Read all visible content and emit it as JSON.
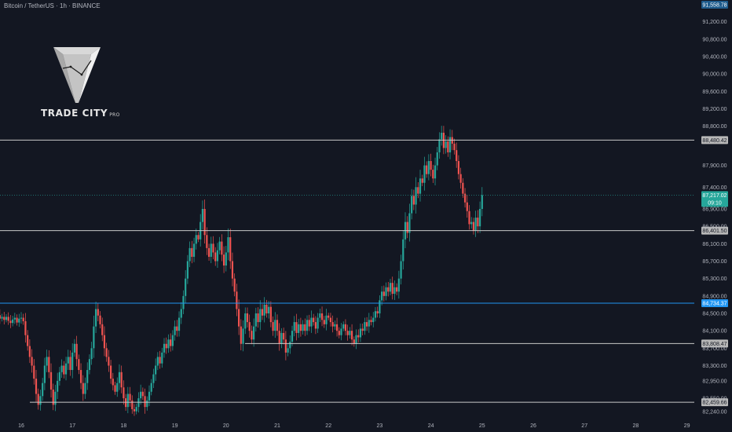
{
  "header": {
    "symbol_title": "Bitcoin / TetherUS · 1h · BINANCE"
  },
  "branding": {
    "name": "TRADE CITY",
    "suffix": "PRO",
    "logo_icon": "funnel-cube-logo-icon"
  },
  "colors": {
    "background": "#131722",
    "up_candle": "#26a69a",
    "down_candle": "#ef5350",
    "horizontal_line": "#c8c8c8",
    "blue_line": "#2196f3",
    "current_price": "#26a69a",
    "top_label": "#1e5b8c"
  },
  "chart_data": {
    "type": "candlestick",
    "symbol": "Bitcoin / TetherUS",
    "timeframe": "1h",
    "exchange": "BINANCE",
    "y_axis_labels": [
      91200,
      90800,
      90400,
      90000,
      89600,
      89200,
      88800,
      87900,
      87400,
      86900,
      86500,
      86100,
      85700,
      85300,
      84900,
      84500,
      84100,
      83700,
      83300,
      82950,
      82550,
      82240
    ],
    "x_axis_labels": [
      "16",
      "17",
      "18",
      "19",
      "20",
      "21",
      "22",
      "23",
      "24",
      "25",
      "26",
      "27",
      "28",
      "29"
    ],
    "ylim": [
      82100,
      91700
    ],
    "top_price_label": "91,558.78",
    "current_price": {
      "value": 87217.02,
      "label": "87,217.02",
      "countdown": "09:10"
    },
    "levels": [
      {
        "value": 88480.42,
        "label": "88,480.42",
        "kind": "horizontal"
      },
      {
        "value": 86401.5,
        "label": "86,401.50",
        "kind": "horizontal"
      },
      {
        "value": 84734.37,
        "label": "84,734.37",
        "kind": "blue-horizontal"
      },
      {
        "value": 83808.47,
        "label": "83,808.47",
        "kind": "horizontal"
      },
      {
        "value": 82459.66,
        "label": "82,459.66",
        "kind": "horizontal"
      }
    ],
    "series": [
      {
        "day": 16,
        "closes": [
          84430,
          84460,
          84380,
          84420,
          84350,
          84420,
          84330,
          84280,
          84360,
          84400,
          84290,
          84380,
          84400,
          84320,
          84000,
          83750,
          83500,
          83300,
          83000,
          82650,
          82400,
          82600,
          82900,
          83300
        ]
      },
      {
        "day": 17,
        "closes": [
          83500,
          83150,
          82750,
          82400,
          82700,
          82950,
          83150,
          83300,
          83100,
          83350,
          83500,
          83200,
          83600,
          83800,
          83450,
          83200,
          82900,
          82650,
          82900,
          83200,
          83450,
          83700,
          84200,
          84600
        ]
      },
      {
        "day": 18,
        "closes": [
          84450,
          84250,
          84000,
          83700,
          83500,
          83300,
          83000,
          82850,
          82700,
          82900,
          83150,
          82800,
          82550,
          82350,
          82650,
          82500,
          82300,
          82250,
          82350,
          82550,
          82700,
          82600,
          82350,
          82500
        ]
      },
      {
        "day": 19,
        "closes": [
          82700,
          82900,
          83100,
          83300,
          83500,
          83350,
          83600,
          83800,
          83700,
          83900,
          83750,
          84000,
          84200,
          84100,
          84400,
          84600,
          84900,
          85300,
          85700,
          86000,
          85800,
          86100,
          86300,
          86200
        ]
      },
      {
        "day": 20,
        "closes": [
          86600,
          86900,
          86300,
          86000,
          85800,
          86100,
          85900,
          85700,
          85950,
          86150,
          85850,
          85600,
          85900,
          86250,
          85700,
          85300,
          85000,
          84600,
          84200,
          83800,
          84150,
          84500,
          84300,
          84100
        ]
      },
      {
        "day": 21,
        "closes": [
          83900,
          84200,
          84500,
          84300,
          84600,
          84450,
          84700,
          84500,
          84650,
          84300,
          84100,
          84350,
          84100,
          83800,
          84050,
          83900,
          83600,
          83700,
          83850,
          84100,
          84300,
          84050,
          84250,
          84100
        ]
      },
      {
        "day": 22,
        "closes": [
          84250,
          84100,
          84350,
          84200,
          84400,
          84300,
          84150,
          84400,
          84500,
          84350,
          84250,
          84450,
          84400,
          84300,
          84200,
          84250,
          84100,
          84000,
          84150,
          84250,
          84100,
          84000,
          84100,
          83900
        ]
      },
      {
        "day": 23,
        "closes": [
          83800,
          84000,
          83950,
          84150,
          84100,
          84300,
          84200,
          84350,
          84300,
          84400,
          84550,
          84500,
          84800,
          85000,
          84900,
          85100,
          85000,
          85200,
          84950,
          85100,
          85000,
          85300,
          85700,
          86200
        ]
      },
      {
        "day": 24,
        "closes": [
          86600,
          86350,
          86800,
          87200,
          87000,
          87400,
          87250,
          87600,
          87500,
          87900,
          87700,
          88000,
          87800,
          87600,
          87900,
          88200,
          88500,
          88650,
          88300,
          88450,
          88200,
          88550,
          88400,
          88250
        ]
      },
      {
        "day": 25,
        "closes": [
          88000,
          87700,
          87500,
          87250,
          87050,
          86850,
          86550,
          86600,
          86400,
          86700,
          86500,
          86900,
          87217
        ]
      }
    ]
  }
}
